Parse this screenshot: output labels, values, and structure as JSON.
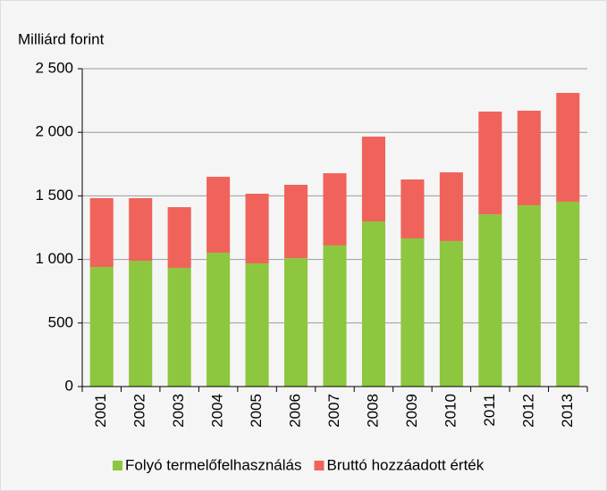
{
  "chart_data": {
    "type": "stacked_bar",
    "y_axis_label": "Milliárd forint",
    "categories": [
      "2001",
      "2002",
      "2003",
      "2004",
      "2005",
      "2006",
      "2007",
      "2008",
      "2009",
      "2010",
      "2011",
      "2012",
      "2013"
    ],
    "series": [
      {
        "name": "Folyó termelőfelhasználás",
        "color": "#8dc63f",
        "values": [
          941,
          990,
          934,
          1053,
          969,
          1011,
          1110,
          1299,
          1166,
          1145,
          1355,
          1426,
          1454
        ]
      },
      {
        "name": "Bruttó hozzáadott érték",
        "color": "#f0635a",
        "values": [
          541,
          492,
          477,
          597,
          548,
          576,
          568,
          667,
          463,
          540,
          808,
          744,
          856
        ]
      }
    ],
    "ylim": [
      0,
      2500
    ],
    "yticks": [
      0,
      500,
      {
        "value": 1000,
        "label": "1 000"
      },
      {
        "value": 1500,
        "label": "1 500"
      },
      {
        "value": 2000,
        "label": "2 000"
      },
      {
        "value": 2500,
        "label": "2 500"
      }
    ],
    "grid": true,
    "legend": "bottom"
  }
}
